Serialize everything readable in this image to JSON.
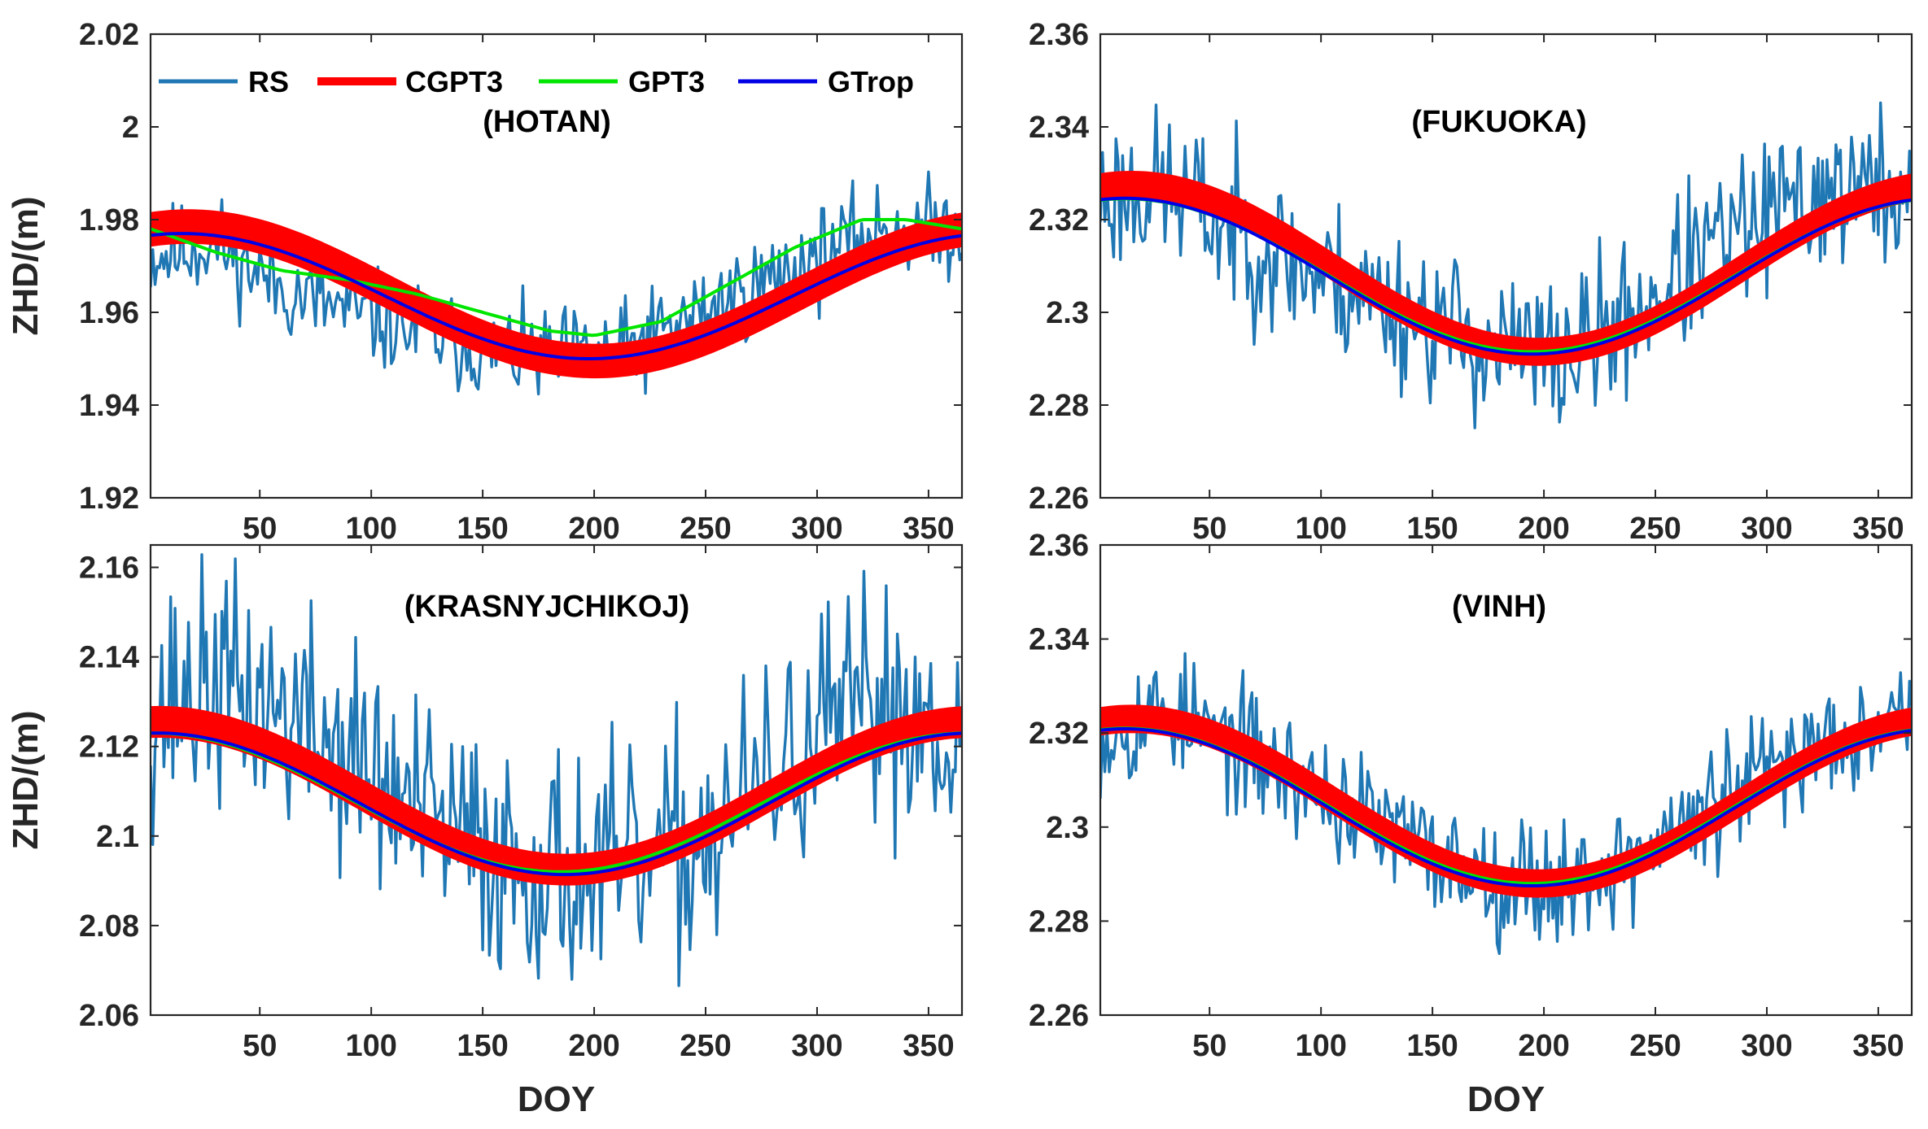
{
  "colors": {
    "RS": "#1f77b4",
    "CGPT3": "#ff0000",
    "GPT3": "#00e600",
    "GTrop": "#0000e6",
    "axis": "#262626"
  },
  "legend": [
    {
      "key": "RS",
      "label": "RS"
    },
    {
      "key": "CGPT3",
      "label": "CGPT3"
    },
    {
      "key": "GPT3",
      "label": "GPT3"
    },
    {
      "key": "GTrop",
      "label": "GTrop"
    }
  ],
  "chart_data": [
    {
      "type": "line",
      "title": "(HOTAN)",
      "xlabel": "",
      "ylabel": "ZHD/(m)",
      "xlim": [
        1,
        365
      ],
      "ylim": [
        1.92,
        2.02
      ],
      "xticks": [
        50,
        100,
        150,
        200,
        250,
        300,
        350
      ],
      "yticks": [
        1.92,
        1.94,
        1.96,
        1.98,
        2.0,
        2.02
      ],
      "ytick_labels": [
        "1.92",
        "1.94",
        "1.96",
        "1.98",
        "2",
        "2.02"
      ],
      "series": [
        {
          "name": "RS",
          "x": [
            1,
            30,
            60,
            90,
            120,
            150,
            180,
            210,
            240,
            270,
            300,
            330,
            365
          ],
          "values": [
            1.972,
            1.975,
            1.965,
            1.96,
            1.956,
            1.952,
            1.95,
            1.951,
            1.958,
            1.965,
            1.972,
            1.978,
            1.978
          ],
          "noise": 0.011,
          "seed": 11
        },
        {
          "name": "CGPT3",
          "mean": 1.964,
          "amp": 0.0145,
          "peak_doy": 18,
          "band": 0.0032
        },
        {
          "name": "GPT3",
          "x": [
            1,
            30,
            60,
            90,
            120,
            150,
            180,
            200,
            230,
            260,
            290,
            320,
            340,
            365
          ],
          "values": [
            1.978,
            1.973,
            1.969,
            1.967,
            1.964,
            1.96,
            1.956,
            1.955,
            1.958,
            1.966,
            1.974,
            1.98,
            1.98,
            1.978
          ]
        },
        {
          "name": "GTrop",
          "mean": 1.9635,
          "amp": 0.0135,
          "peak_doy": 15
        }
      ]
    },
    {
      "type": "line",
      "title": "(FUKUOKA)",
      "xlabel": "",
      "ylabel": "",
      "xlim": [
        1,
        365
      ],
      "ylim": [
        2.26,
        2.36
      ],
      "xticks": [
        50,
        100,
        150,
        200,
        250,
        300,
        350
      ],
      "yticks": [
        2.26,
        2.28,
        2.3,
        2.32,
        2.34,
        2.36
      ],
      "ytick_labels": [
        "2.26",
        "2.28",
        "2.3",
        "2.32",
        "2.34",
        "2.36"
      ],
      "series": [
        {
          "name": "RS",
          "x": [
            1,
            30,
            60,
            90,
            120,
            150,
            180,
            210,
            240,
            270,
            300,
            330,
            365
          ],
          "values": [
            2.325,
            2.327,
            2.318,
            2.31,
            2.304,
            2.298,
            2.292,
            2.29,
            2.3,
            2.312,
            2.32,
            2.327,
            2.326
          ],
          "noise": 0.018,
          "seed": 23
        },
        {
          "name": "CGPT3",
          "mean": 2.3095,
          "amp": 0.018,
          "peak_doy": 15,
          "band": 0.0025
        },
        {
          "name": "GPT3",
          "mean": 2.308,
          "amp": 0.0165,
          "peak_doy": 12
        },
        {
          "name": "GTrop",
          "mean": 2.3078,
          "amp": 0.0168,
          "peak_doy": 12
        }
      ]
    },
    {
      "type": "line",
      "title": "(KRASNYJCHIKOJ)",
      "xlabel": "DOY",
      "ylabel": "ZHD/(m)",
      "xlim": [
        1,
        365
      ],
      "ylim": [
        2.06,
        2.165
      ],
      "xticks": [
        50,
        100,
        150,
        200,
        250,
        300,
        350
      ],
      "yticks": [
        2.06,
        2.08,
        2.1,
        2.12,
        2.14,
        2.16
      ],
      "ytick_labels": [
        "2.06",
        "2.08",
        "2.1",
        "2.12",
        "2.14",
        "2.16"
      ],
      "series": [
        {
          "name": "RS",
          "x": [
            1,
            30,
            60,
            90,
            120,
            150,
            180,
            210,
            240,
            270,
            300,
            330,
            365
          ],
          "values": [
            2.128,
            2.134,
            2.128,
            2.118,
            2.105,
            2.097,
            2.093,
            2.091,
            2.096,
            2.108,
            2.122,
            2.13,
            2.124
          ],
          "noise": 0.028,
          "seed": 37
        },
        {
          "name": "CGPT3",
          "mean": 2.109,
          "amp": 0.0165,
          "peak_doy": 5,
          "band": 0.003
        },
        {
          "name": "GPT3",
          "mean": 2.1075,
          "amp": 0.0155,
          "peak_doy": 2
        },
        {
          "name": "GTrop",
          "mean": 2.1072,
          "amp": 0.0158,
          "peak_doy": 4
        }
      ]
    },
    {
      "type": "line",
      "title": "(VINH)",
      "xlabel": "DOY",
      "ylabel": "",
      "xlim": [
        1,
        365
      ],
      "ylim": [
        2.26,
        2.36
      ],
      "xticks": [
        50,
        100,
        150,
        200,
        250,
        300,
        350
      ],
      "yticks": [
        2.26,
        2.28,
        2.3,
        2.32,
        2.34,
        2.36
      ],
      "ytick_labels": [
        "2.26",
        "2.28",
        "2.3",
        "2.32",
        "2.34",
        "2.36"
      ],
      "series": [
        {
          "name": "RS",
          "x": [
            1,
            30,
            60,
            90,
            120,
            150,
            180,
            210,
            240,
            270,
            300,
            330,
            365
          ],
          "values": [
            2.32,
            2.325,
            2.318,
            2.31,
            2.302,
            2.294,
            2.289,
            2.288,
            2.293,
            2.302,
            2.312,
            2.32,
            2.326
          ],
          "noise": 0.014,
          "seed": 53
        },
        {
          "name": "CGPT3",
          "mean": 2.3055,
          "amp": 0.0175,
          "peak_doy": 15,
          "band": 0.0025
        },
        {
          "name": "GPT3",
          "mean": 2.3045,
          "amp": 0.0165,
          "peak_doy": 12
        },
        {
          "name": "GTrop",
          "mean": 2.3042,
          "amp": 0.0167,
          "peak_doy": 12
        }
      ]
    }
  ]
}
